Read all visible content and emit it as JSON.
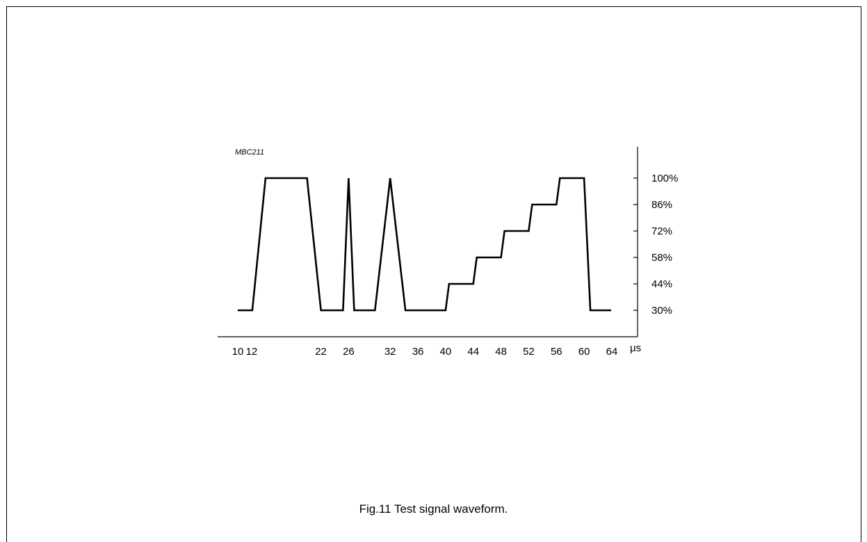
{
  "figure_code": "MBC211",
  "caption": "Fig.11  Test signal waveform.",
  "chart_data": {
    "type": "line",
    "title": "Test signal waveform",
    "x_unit": "μs",
    "x_ticks": [
      "10",
      "12",
      "22",
      "26",
      "32",
      "36",
      "40",
      "44",
      "48",
      "52",
      "56",
      "60",
      "64"
    ],
    "y_ticks": [
      "30%",
      "44%",
      "58%",
      "72%",
      "86%",
      "100%"
    ],
    "xlim": [
      10,
      64
    ],
    "ylim": [
      30,
      100
    ],
    "series": [
      {
        "x": [
          10,
          12.1,
          14,
          20,
          22,
          25.2,
          26,
          26.8,
          29.8,
          32,
          34.2,
          40,
          40.5,
          44,
          44.5,
          48,
          48.5,
          52,
          52.5,
          56,
          56.5,
          60,
          60.9,
          63.9
        ],
        "y": [
          30,
          30,
          100,
          100,
          30,
          30,
          100,
          30,
          30,
          100,
          30,
          30,
          44,
          44,
          58,
          58,
          72,
          72,
          86,
          86,
          100,
          100,
          30,
          30
        ]
      }
    ],
    "grid": false,
    "color": "#000000"
  }
}
